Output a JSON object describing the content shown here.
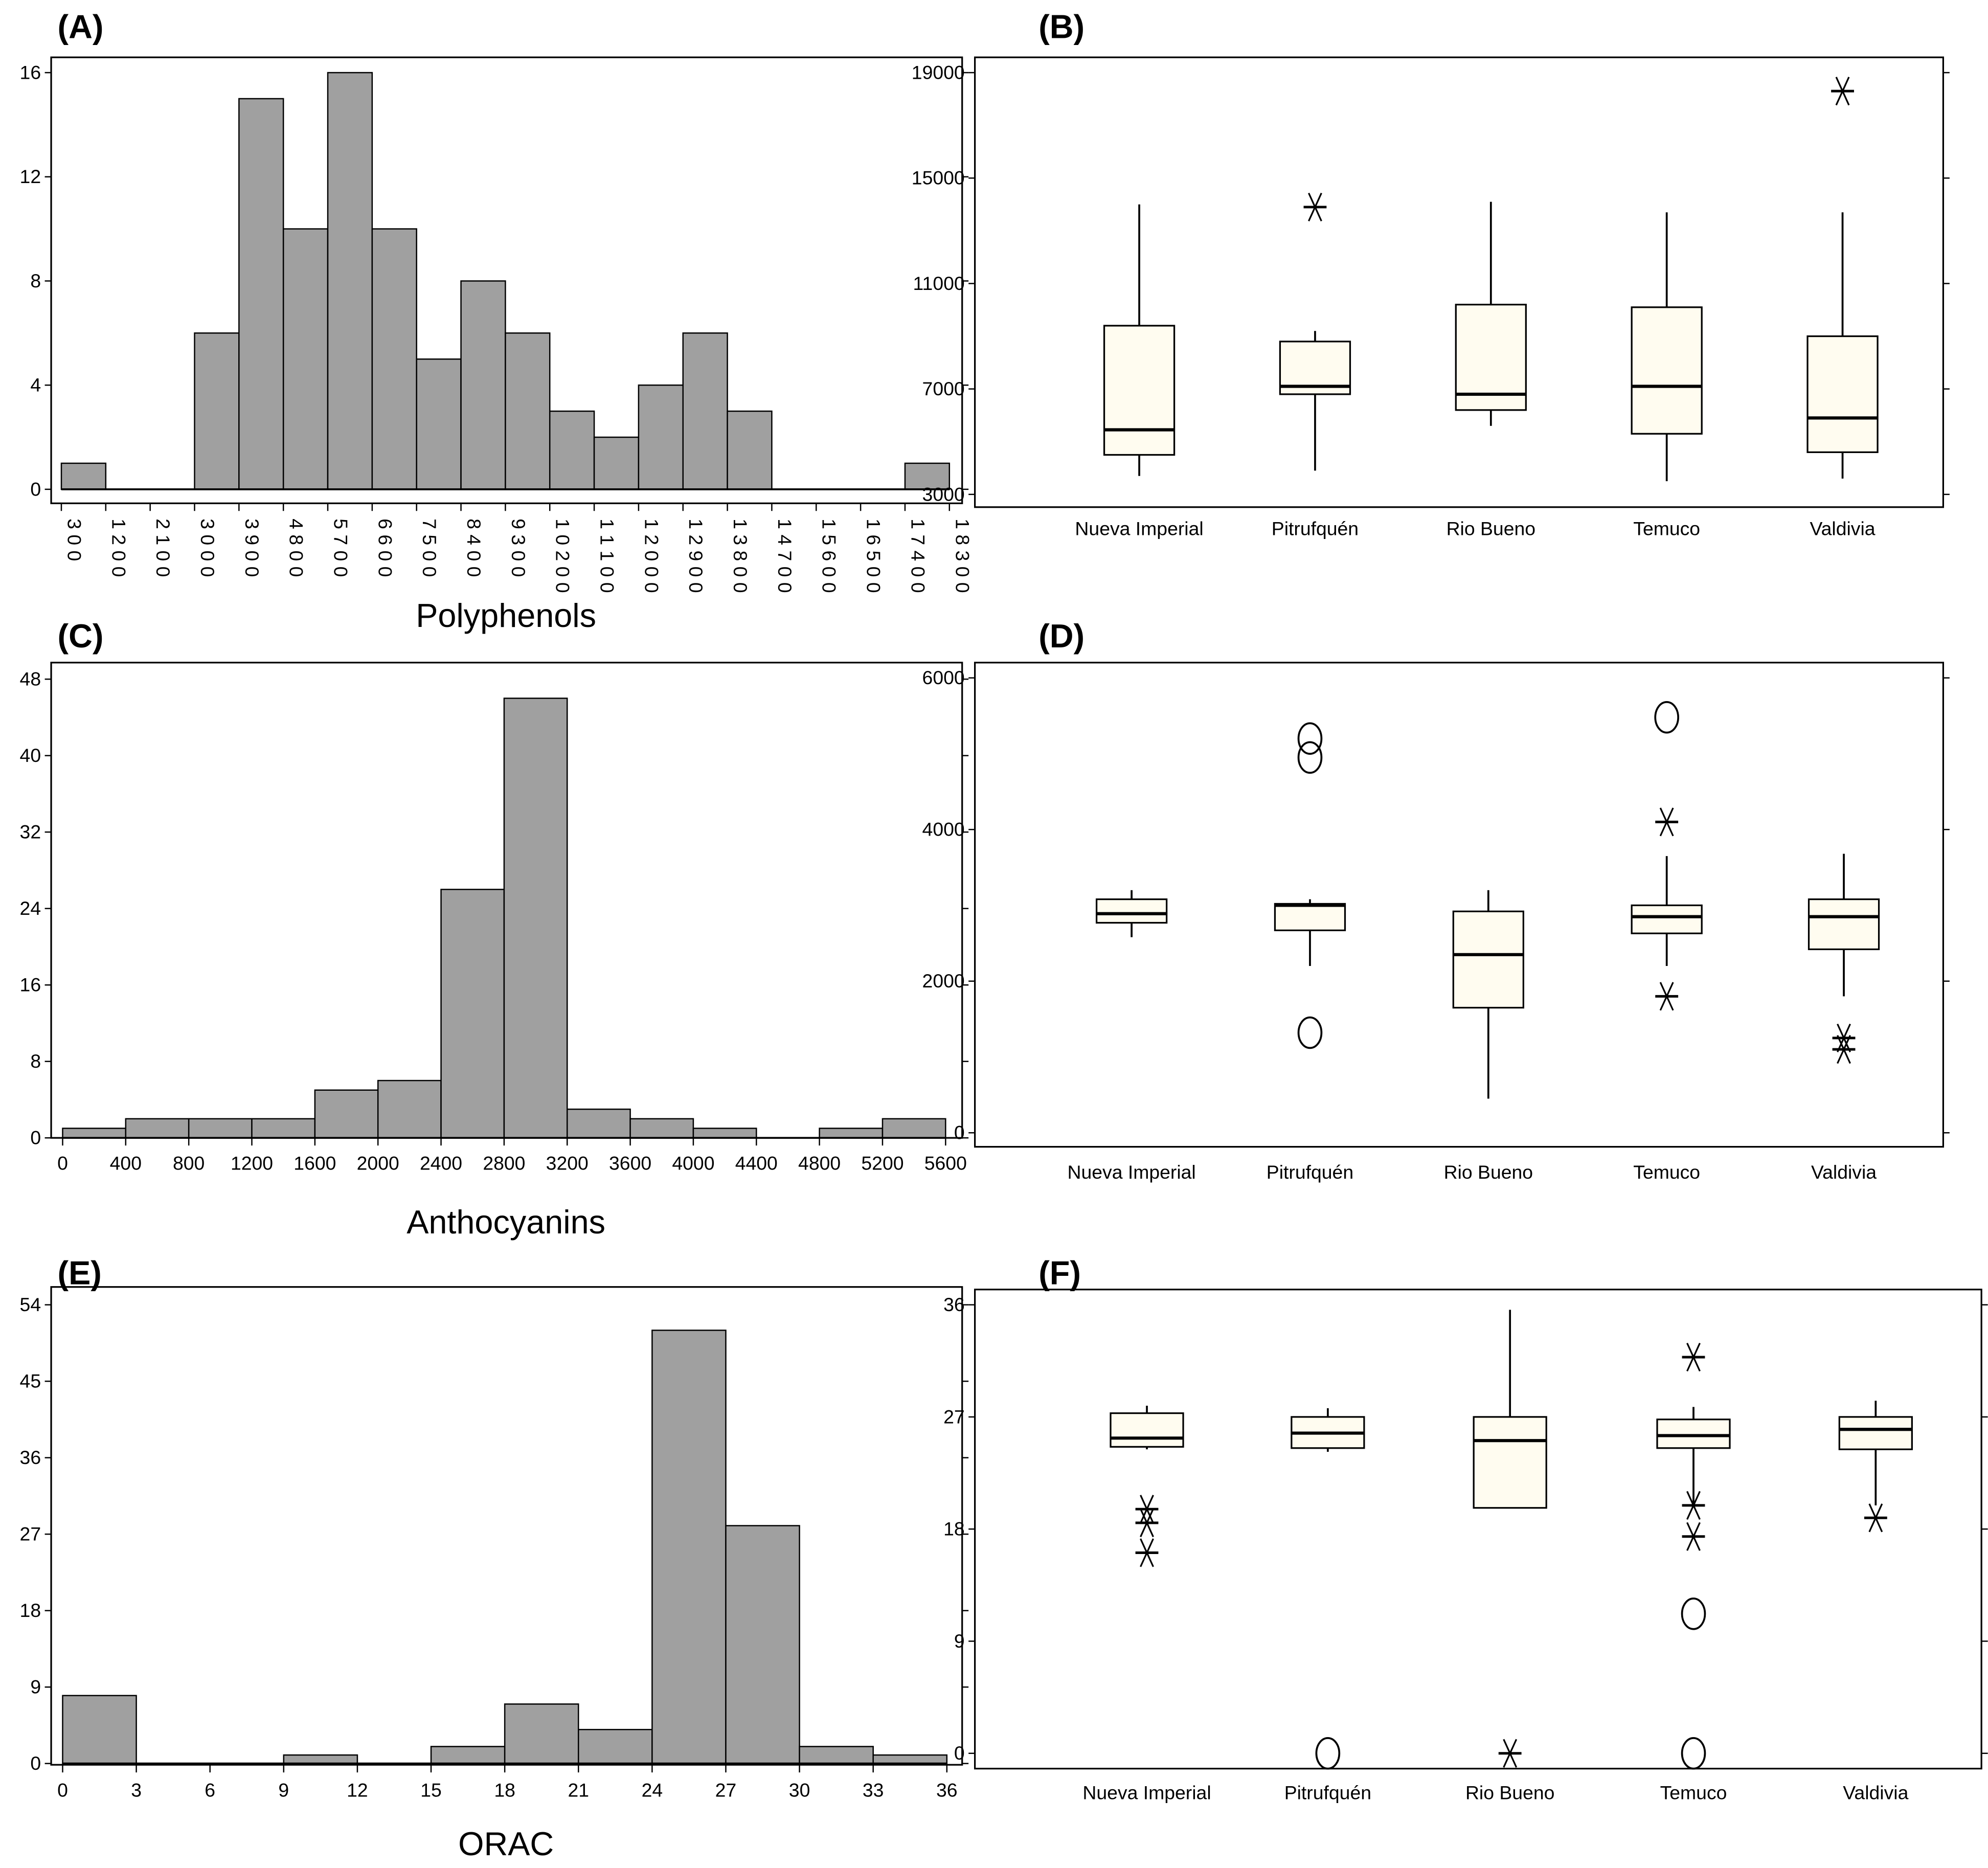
{
  "colors": {
    "bar": "#a0a0a0",
    "box": "#fffcf0",
    "stroke": "#000000"
  },
  "chart_data": [
    {
      "panel": "(A)",
      "type": "bar",
      "title": "",
      "xlabel": "Polyphenols",
      "ylabel": "",
      "bin_edges": [
        300,
        1200,
        2100,
        3000,
        3900,
        4800,
        5700,
        6600,
        7500,
        8400,
        9300,
        10200,
        11100,
        12000,
        12900,
        13800,
        14700,
        15600,
        16500,
        17400,
        18300
      ],
      "values": [
        1,
        0,
        0,
        6,
        15,
        10,
        16,
        10,
        5,
        8,
        6,
        3,
        2,
        4,
        6,
        3,
        0,
        0,
        0,
        1
      ],
      "yticks": [
        0,
        4,
        8,
        12,
        16
      ],
      "ylim": [
        0,
        16.4
      ]
    },
    {
      "panel": "(B)",
      "type": "box",
      "title": "",
      "xlabel": "",
      "ylabel": "",
      "categories": [
        "Nueva Imperial",
        "Pitrufquén",
        "Rio Bueno",
        "Temuco",
        "Valdivia"
      ],
      "boxes": [
        {
          "low": 3700,
          "q1": 4500,
          "median": 5450,
          "q3": 9400,
          "high": 14000,
          "outliers": [],
          "extremes": []
        },
        {
          "low": 3900,
          "q1": 6800,
          "median": 7100,
          "q3": 8800,
          "high": 9200,
          "outliers": [],
          "extremes": [
            13900
          ]
        },
        {
          "low": 5600,
          "q1": 6200,
          "median": 6800,
          "q3": 10200,
          "high": 14100,
          "outliers": [],
          "extremes": []
        },
        {
          "low": 3500,
          "q1": 5300,
          "median": 7100,
          "q3": 10100,
          "high": 13700,
          "outliers": [],
          "extremes": []
        },
        {
          "low": 3600,
          "q1": 4600,
          "median": 5900,
          "q3": 9000,
          "high": 13700,
          "outliers": [],
          "extremes": [
            18300
          ]
        }
      ],
      "yticks": [
        3000,
        7000,
        11000,
        15000,
        19000
      ],
      "ylim": [
        2500,
        19400
      ]
    },
    {
      "panel": "(C)",
      "type": "bar",
      "title": "",
      "xlabel": "Anthocyanins",
      "ylabel": "",
      "bin_edges": [
        0,
        400,
        800,
        1200,
        1600,
        2000,
        2400,
        2800,
        3200,
        3600,
        4000,
        4400,
        4800,
        5200,
        5600
      ],
      "values": [
        1,
        2,
        2,
        2,
        5,
        6,
        26,
        46,
        3,
        2,
        1,
        0,
        1,
        2
      ],
      "yticks": [
        0,
        8,
        16,
        24,
        32,
        40,
        48
      ],
      "ylim": [
        0,
        49.5
      ]
    },
    {
      "panel": "(D)",
      "type": "box",
      "title": "",
      "xlabel": "",
      "ylabel": "",
      "categories": [
        "Nueva Imperial",
        "Pitrufquén",
        "Rio Bueno",
        "Temuco",
        "Valdivia"
      ],
      "boxes": [
        {
          "low": 2580,
          "q1": 2770,
          "median": 2890,
          "q3": 3080,
          "high": 3200,
          "outliers": [],
          "extremes": []
        },
        {
          "low": 2200,
          "q1": 2670,
          "median": 3000,
          "q3": 3020,
          "high": 3080,
          "outliers": [
            5200,
            4950,
            1320
          ],
          "extremes": []
        },
        {
          "low": 450,
          "q1": 1650,
          "median": 2350,
          "q3": 2920,
          "high": 3200,
          "outliers": [],
          "extremes": []
        },
        {
          "low": 2200,
          "q1": 2630,
          "median": 2850,
          "q3": 3000,
          "high": 3650,
          "outliers": [
            5480
          ],
          "extremes": [
            4100,
            1800
          ]
        },
        {
          "low": 1800,
          "q1": 2420,
          "median": 2850,
          "q3": 3080,
          "high": 3680,
          "outliers": [],
          "extremes": [
            1250,
            1100
          ]
        }
      ],
      "yticks": [
        0,
        2000,
        4000,
        6000
      ],
      "ylim": [
        -180,
        6200
      ]
    },
    {
      "panel": "(E)",
      "type": "bar",
      "title": "",
      "xlabel": "ORAC",
      "ylabel": "",
      "bin_edges": [
        0,
        3,
        6,
        9,
        12,
        15,
        18,
        21,
        24,
        27,
        30,
        33,
        36
      ],
      "values": [
        8,
        0,
        0,
        1,
        0,
        2,
        7,
        4,
        51,
        28,
        2,
        1
      ],
      "yticks": [
        0,
        9,
        18,
        27,
        36,
        45,
        54
      ],
      "ylim": [
        0,
        56
      ]
    },
    {
      "panel": "(F)",
      "type": "box",
      "title": "",
      "xlabel": "",
      "ylabel": "",
      "categories": [
        "Nueva Imperial",
        "Pitrufquén",
        "Rio Bueno",
        "Temuco",
        "Valdivia"
      ],
      "boxes": [
        {
          "low": 24.4,
          "q1": 24.6,
          "median": 25.3,
          "q3": 27.3,
          "high": 27.9,
          "outliers": [],
          "extremes": [
            19.6,
            18.5,
            16.1
          ]
        },
        {
          "low": 24.2,
          "q1": 24.5,
          "median": 25.7,
          "q3": 27.0,
          "high": 27.7,
          "outliers": [
            0
          ],
          "extremes": []
        },
        {
          "low": 19.7,
          "q1": 19.7,
          "median": 25.1,
          "q3": 27.0,
          "high": 35.6,
          "outliers": [],
          "extremes": [
            0
          ]
        },
        {
          "low": 19.9,
          "q1": 24.5,
          "median": 25.5,
          "q3": 26.8,
          "high": 27.8,
          "outliers": [
            11.2,
            0
          ],
          "extremes": [
            31.8,
            19.9,
            17.4
          ]
        },
        {
          "low": 19.9,
          "q1": 24.4,
          "median": 26.0,
          "q3": 27.0,
          "high": 28.3,
          "outliers": [],
          "extremes": [
            18.9
          ]
        }
      ],
      "yticks": [
        0,
        9,
        18,
        27,
        36
      ],
      "ylim": [
        -1.2,
        37.2
      ]
    }
  ]
}
